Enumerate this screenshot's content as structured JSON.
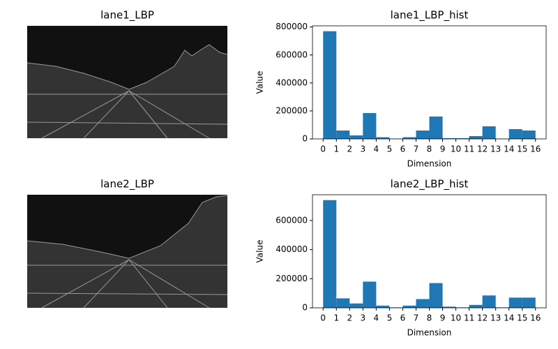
{
  "chart_data": [
    {
      "type": "image",
      "title": "lane1_LBP"
    },
    {
      "type": "histogram",
      "title": "lane1_LBP_hist",
      "xlabel": "Dimension",
      "ylabel": "Value",
      "color": "#1f77b4",
      "bins": [
        0,
        1,
        2,
        3,
        4,
        5,
        6,
        7,
        8,
        9,
        10,
        11,
        12,
        13,
        14,
        15,
        16
      ],
      "values": [
        770000,
        60000,
        25000,
        185000,
        12000,
        2000,
        12000,
        60000,
        160000,
        5000,
        5000,
        20000,
        90000,
        2000,
        70000,
        60000
      ],
      "xlim": [
        -0.8,
        16.8
      ],
      "ylim": [
        0,
        808500
      ],
      "xticks": [
        0,
        1,
        2,
        3,
        4,
        5,
        6,
        7,
        8,
        9,
        10,
        11,
        12,
        13,
        14,
        15,
        16
      ],
      "yticks": [
        0,
        200000,
        400000,
        600000,
        800000
      ]
    },
    {
      "type": "image",
      "title": "lane2_LBP"
    },
    {
      "type": "histogram",
      "title": "lane2_LBP_hist",
      "xlabel": "Dimension",
      "ylabel": "Value",
      "color": "#1f77b4",
      "bins": [
        0,
        1,
        2,
        3,
        4,
        5,
        6,
        7,
        8,
        9,
        10,
        11,
        12,
        13,
        14,
        15,
        16
      ],
      "values": [
        740000,
        65000,
        30000,
        180000,
        15000,
        3000,
        15000,
        60000,
        170000,
        8000,
        3000,
        20000,
        85000,
        3000,
        70000,
        70000
      ],
      "xlim": [
        -0.8,
        16.8
      ],
      "ylim": [
        0,
        777000
      ],
      "xticks": [
        0,
        1,
        2,
        3,
        4,
        5,
        6,
        7,
        8,
        9,
        10,
        11,
        12,
        13,
        14,
        15,
        16
      ],
      "yticks": [
        0,
        200000,
        400000,
        600000
      ]
    }
  ]
}
